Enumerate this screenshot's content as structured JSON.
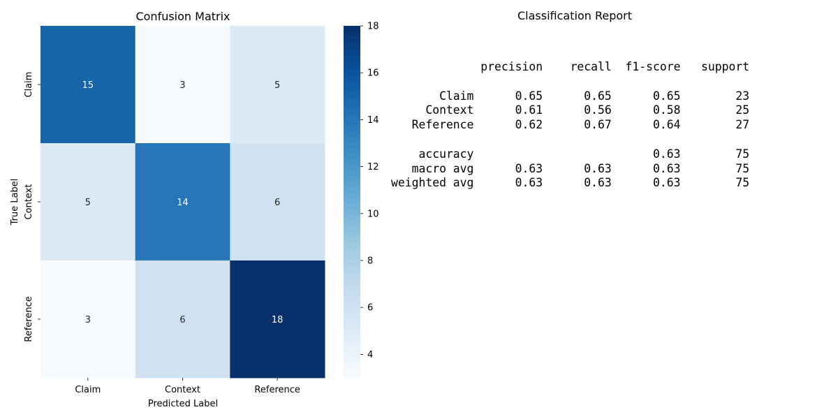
{
  "chart_data": [
    {
      "type": "heatmap",
      "title": "Confusion Matrix",
      "xlabel": "Predicted Label",
      "ylabel": "True Label",
      "x_categories": [
        "Claim",
        "Context",
        "Reference"
      ],
      "y_categories": [
        "Claim",
        "Context",
        "Reference"
      ],
      "values": [
        [
          15,
          3,
          5
        ],
        [
          5,
          14,
          6
        ],
        [
          3,
          6,
          18
        ]
      ],
      "colormap": "Blues",
      "vmin": 3,
      "vmax": 18,
      "colorbar_ticks": [
        "4",
        "6",
        "8",
        "10",
        "12",
        "14",
        "16",
        "18"
      ],
      "annotations": true
    },
    {
      "type": "table",
      "title": "Classification Report",
      "columns": [
        "precision",
        "recall",
        "f1-score",
        "support"
      ],
      "rows": [
        {
          "label": "Claim",
          "precision": "0.65",
          "recall": "0.65",
          "f1": "0.65",
          "support": "23"
        },
        {
          "label": "Context",
          "precision": "0.61",
          "recall": "0.56",
          "f1": "0.58",
          "support": "25"
        },
        {
          "label": "Reference",
          "precision": "0.62",
          "recall": "0.67",
          "f1": "0.64",
          "support": "27"
        }
      ],
      "summary": [
        {
          "label": "accuracy",
          "precision": "",
          "recall": "",
          "f1": "0.63",
          "support": "75"
        },
        {
          "label": "macro avg",
          "precision": "0.63",
          "recall": "0.63",
          "f1": "0.63",
          "support": "75"
        },
        {
          "label": "weighted avg",
          "precision": "0.63",
          "recall": "0.63",
          "f1": "0.63",
          "support": "75"
        }
      ]
    }
  ]
}
